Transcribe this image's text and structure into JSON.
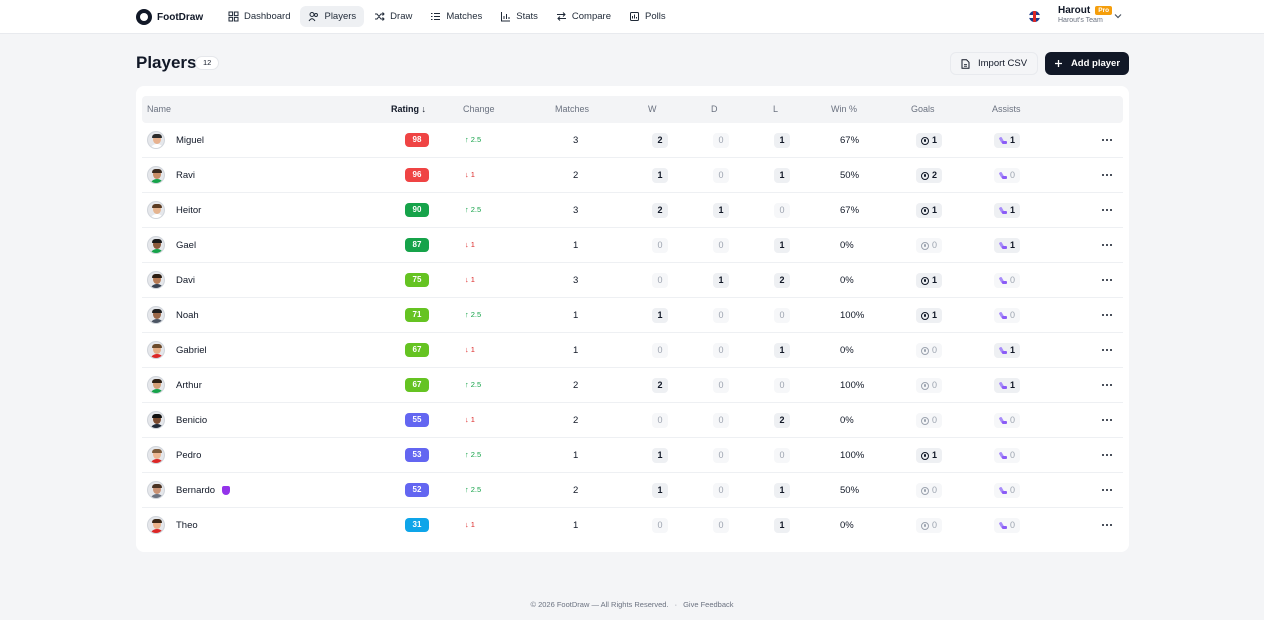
{
  "app": {
    "name": "FootDraw"
  },
  "nav": [
    {
      "label": "Dashboard",
      "icon": "grid-icon",
      "active": false
    },
    {
      "label": "Players",
      "icon": "users-icon",
      "active": true
    },
    {
      "label": "Draw",
      "icon": "shuffle-icon",
      "active": false
    },
    {
      "label": "Matches",
      "icon": "list-icon",
      "active": false
    },
    {
      "label": "Stats",
      "icon": "bar-chart-icon",
      "active": false
    },
    {
      "label": "Compare",
      "icon": "compare-icon",
      "active": false
    },
    {
      "label": "Polls",
      "icon": "poll-icon",
      "active": false
    }
  ],
  "user": {
    "name": "Harout",
    "badge": "Pro",
    "team": "Harout's Team"
  },
  "page": {
    "title": "Players",
    "count": "12"
  },
  "actions": {
    "import_label": "Import CSV",
    "add_label": "Add player"
  },
  "table": {
    "headers": {
      "name": "Name",
      "rating": "Rating",
      "change": "Change",
      "matches": "Matches",
      "w": "W",
      "d": "D",
      "l": "L",
      "win": "Win %",
      "goals": "Goals",
      "assists": "Assists"
    },
    "rows": [
      {
        "name": "Miguel",
        "rating": "98",
        "rating_color": "#ef4444",
        "change": "2.5",
        "dir": "up",
        "matches": "3",
        "w": "2",
        "d": "0",
        "l": "1",
        "win": "67%",
        "goals": "1",
        "assists": "1"
      },
      {
        "name": "Ravi",
        "rating": "96",
        "rating_color": "#ef4444",
        "change": "1",
        "dir": "down",
        "matches": "2",
        "w": "1",
        "d": "0",
        "l": "1",
        "win": "50%",
        "goals": "2",
        "assists": "0"
      },
      {
        "name": "Heitor",
        "rating": "90",
        "rating_color": "#16a34a",
        "change": "2.5",
        "dir": "up",
        "matches": "3",
        "w": "2",
        "d": "1",
        "l": "0",
        "win": "67%",
        "goals": "1",
        "assists": "1"
      },
      {
        "name": "Gael",
        "rating": "87",
        "rating_color": "#16a34a",
        "change": "1",
        "dir": "down",
        "matches": "1",
        "w": "0",
        "d": "0",
        "l": "1",
        "win": "0%",
        "goals": "0",
        "assists": "1"
      },
      {
        "name": "Davi",
        "rating": "75",
        "rating_color": "#65c322",
        "change": "1",
        "dir": "down",
        "matches": "3",
        "w": "0",
        "d": "1",
        "l": "2",
        "win": "0%",
        "goals": "1",
        "assists": "0"
      },
      {
        "name": "Noah",
        "rating": "71",
        "rating_color": "#65c322",
        "change": "2.5",
        "dir": "up",
        "matches": "1",
        "w": "1",
        "d": "0",
        "l": "0",
        "win": "100%",
        "goals": "1",
        "assists": "0"
      },
      {
        "name": "Gabriel",
        "rating": "67",
        "rating_color": "#65c322",
        "change": "1",
        "dir": "down",
        "matches": "1",
        "w": "0",
        "d": "0",
        "l": "1",
        "win": "0%",
        "goals": "0",
        "assists": "1"
      },
      {
        "name": "Arthur",
        "rating": "67",
        "rating_color": "#65c322",
        "change": "2.5",
        "dir": "up",
        "matches": "2",
        "w": "2",
        "d": "0",
        "l": "0",
        "win": "100%",
        "goals": "0",
        "assists": "1"
      },
      {
        "name": "Benicio",
        "rating": "55",
        "rating_color": "#6366f1",
        "change": "1",
        "dir": "down",
        "matches": "2",
        "w": "0",
        "d": "0",
        "l": "2",
        "win": "0%",
        "goals": "0",
        "assists": "0"
      },
      {
        "name": "Pedro",
        "rating": "53",
        "rating_color": "#6366f1",
        "change": "2.5",
        "dir": "up",
        "matches": "1",
        "w": "1",
        "d": "0",
        "l": "0",
        "win": "100%",
        "goals": "1",
        "assists": "0"
      },
      {
        "name": "Bernardo",
        "rating": "52",
        "rating_color": "#6366f1",
        "change": "2.5",
        "dir": "up",
        "matches": "2",
        "w": "1",
        "d": "0",
        "l": "1",
        "win": "50%",
        "goals": "0",
        "assists": "0",
        "extra_icon": "glove-icon"
      },
      {
        "name": "Theo",
        "rating": "31",
        "rating_color": "#0ea5e9",
        "change": "1",
        "dir": "down",
        "matches": "1",
        "w": "0",
        "d": "0",
        "l": "1",
        "win": "0%",
        "goals": "0",
        "assists": "0"
      }
    ]
  },
  "footer": {
    "copyright": "© 2026 FootDraw — All Rights Reserved.",
    "separator": "·",
    "feedback": "Give Feedback"
  }
}
